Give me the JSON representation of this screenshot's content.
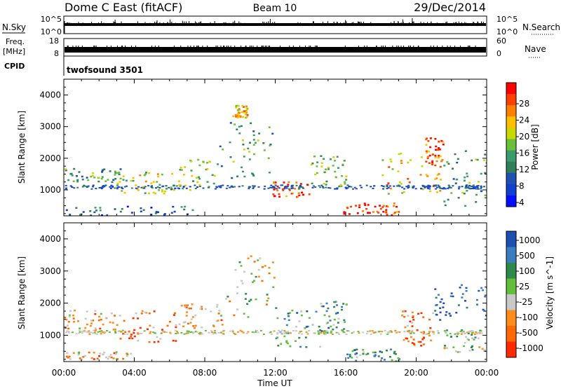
{
  "header": {
    "station": "Dome C East (fitACF)",
    "beam": "Beam 10",
    "date": "29/Dec/2014"
  },
  "noise_panel": {
    "left_label": "N.Sky",
    "right_label": "N.Search",
    "left_ticks": [
      "10^5",
      "10^0"
    ],
    "right_ticks": [
      "10^5",
      "10^0"
    ]
  },
  "freq_panel": {
    "left_label_1": "Freq.",
    "left_label_2": "[MHz]",
    "right_label": "Nave",
    "left_ticks": [
      "18",
      "8"
    ],
    "right_ticks": [
      "60",
      "0"
    ],
    "cpid_label": "CPID",
    "cpid_value": "twofsound 3501"
  },
  "chart_data": [
    {
      "type": "heatmap",
      "title": "Power",
      "ylabel": "Slant Range [km]",
      "xlabel": "Time UT",
      "x_ticks": [
        "00:00",
        "04:00",
        "08:00",
        "12:00",
        "16:00",
        "20:00",
        "00:00"
      ],
      "y_ticks": [
        1000,
        2000,
        3000,
        4000
      ],
      "ylim": [
        180,
        4500
      ],
      "xlim_hours": [
        0,
        24
      ],
      "colorbar": {
        "label": "Power [dB]",
        "ticks": [
          "28",
          "24",
          "20",
          "16",
          "12",
          "8",
          "4"
        ],
        "colors": [
          "#ff0000",
          "#ff4000",
          "#ff8000",
          "#ffbf00",
          "#c8d800",
          "#6bbf3a",
          "#3a9c6a",
          "#2e7f5a",
          "#2050b0",
          "#1040d0",
          "#0010ff"
        ]
      },
      "regions": [
        {
          "t0": 0.0,
          "t1": 3.2,
          "r0": 1200,
          "r1": 1700,
          "level": 6
        },
        {
          "t0": 3.0,
          "t1": 6.0,
          "r0": 900,
          "r1": 1600,
          "level": 4
        },
        {
          "t0": 6.0,
          "t1": 8.8,
          "r0": 1000,
          "r1": 2000,
          "level": 5
        },
        {
          "t0": 8.8,
          "t1": 11.8,
          "r0": 1400,
          "r1": 3200,
          "level": 6
        },
        {
          "t0": 9.5,
          "t1": 10.4,
          "r0": 3300,
          "r1": 3700,
          "level": 3
        },
        {
          "t0": 11.8,
          "t1": 14.0,
          "r0": 800,
          "r1": 1300,
          "level": 1
        },
        {
          "t0": 14.0,
          "t1": 16.0,
          "r0": 1100,
          "r1": 2100,
          "level": 5
        },
        {
          "t0": 15.8,
          "t1": 19.0,
          "r0": 200,
          "r1": 600,
          "level": 1
        },
        {
          "t0": 18.0,
          "t1": 21.5,
          "r0": 900,
          "r1": 2200,
          "level": 3
        },
        {
          "t0": 20.5,
          "t1": 21.5,
          "r0": 1800,
          "r1": 2700,
          "level": 1
        },
        {
          "t0": 21.5,
          "t1": 24.0,
          "r0": 500,
          "r1": 2300,
          "level": 6
        },
        {
          "t0": 0.0,
          "t1": 8.0,
          "r0": 200,
          "r1": 500,
          "level": 8
        }
      ]
    },
    {
      "type": "heatmap",
      "title": "Velocity",
      "ylabel": "Slant Range [km]",
      "xlabel": "Time UT",
      "x_ticks": [
        "00:00",
        "04:00",
        "08:00",
        "12:00",
        "16:00",
        "20:00",
        "00:00"
      ],
      "y_ticks": [
        1000,
        2000,
        3000,
        4000
      ],
      "ylim": [
        180,
        4500
      ],
      "xlim_hours": [
        0,
        24
      ],
      "colorbar": {
        "label": "Velocity [m s^-1]",
        "ticks": [
          "1000",
          "500",
          "100",
          "25",
          "-25",
          "-100",
          "-500",
          "-1000"
        ],
        "colors": [
          "#1f4fb0",
          "#3a7ec0",
          "#2e8a4a",
          "#62bf3a",
          "#c8c8c8",
          "#ff8c1a",
          "#ff6a00",
          "#ff2a00"
        ]
      },
      "regions": [
        {
          "t0": 0.0,
          "t1": 3.0,
          "r0": 1200,
          "r1": 1800,
          "level": 5
        },
        {
          "t0": 3.0,
          "t1": 6.5,
          "r0": 800,
          "r1": 1800,
          "level": 6
        },
        {
          "t0": 6.5,
          "t1": 9.0,
          "r0": 1200,
          "r1": 2000,
          "level": 5
        },
        {
          "t0": 9.0,
          "t1": 12.0,
          "r0": 1500,
          "r1": 3500,
          "level": 4
        },
        {
          "t0": 12.0,
          "t1": 14.5,
          "r0": 600,
          "r1": 1800,
          "level": 2
        },
        {
          "t0": 14.5,
          "t1": 16.0,
          "r0": 1100,
          "r1": 2100,
          "level": 2
        },
        {
          "t0": 16.0,
          "t1": 19.0,
          "r0": 200,
          "r1": 600,
          "level": 2
        },
        {
          "t0": 19.0,
          "t1": 21.0,
          "r0": 700,
          "r1": 1800,
          "level": 6
        },
        {
          "t0": 21.0,
          "t1": 24.0,
          "r0": 1500,
          "r1": 2600,
          "level": 0
        },
        {
          "t0": 21.5,
          "t1": 24.0,
          "r0": 500,
          "r1": 1200,
          "level": 3
        },
        {
          "t0": 0.0,
          "t1": 4.0,
          "r0": 250,
          "r1": 500,
          "level": 5
        }
      ]
    }
  ]
}
